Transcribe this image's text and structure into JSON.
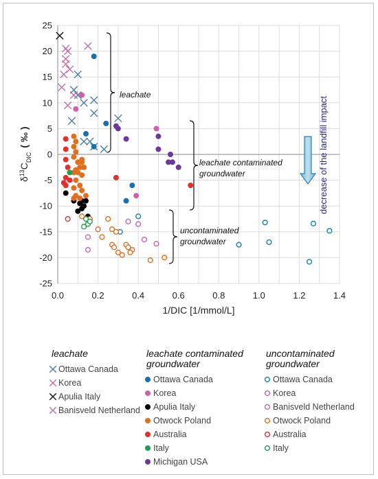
{
  "chart_data": {
    "type": "scatter",
    "xlabel": "1/DIC [1/mmol/L]",
    "ylabel": "δ13CDIC (‰)",
    "ylabel_parts": {
      "delta": "δ",
      "sup": "13",
      "main": "C",
      "sub": "DIC",
      "unit": "( ‰ )"
    },
    "xlim": [
      0,
      1.4
    ],
    "ylim": [
      -25,
      25
    ],
    "xticks": [
      "0.0",
      "0.2",
      "0.4",
      "0.6",
      "0.8",
      "1.0",
      "1.2",
      "1.4"
    ],
    "yticks": [
      "-25",
      "-20",
      "-15",
      "-10",
      "-5",
      "0",
      "5",
      "10",
      "15",
      "20",
      "25"
    ],
    "grid": true,
    "annotations": {
      "leachate": "leachate",
      "contaminated_1": "leachate contaminated",
      "contaminated_2": "groundwater",
      "uncontaminated_1": "uncontaminated",
      "uncontaminated_2": "groundwater",
      "arrow": "decrease of the landfill impact"
    },
    "groups": [
      {
        "title_lines": [
          "leachate"
        ],
        "series": [
          {
            "name": "Ottawa Canada",
            "marker": "x",
            "color": "#4a7fa8",
            "points": [
              [
                0.1,
                15.5
              ],
              [
                0.08,
                12.5
              ],
              [
                0.1,
                11.5
              ],
              [
                0.18,
                10.5
              ],
              [
                0.13,
                10
              ],
              [
                0.07,
                6.5
              ],
              [
                0.18,
                8
              ],
              [
                0.3,
                7
              ],
              [
                0.13,
                2.5
              ],
              [
                0.16,
                2.5
              ],
              [
                0.18,
                1.5
              ],
              [
                0.23,
                1
              ]
            ]
          },
          {
            "name": "Korea",
            "marker": "x",
            "color": "#c070a8",
            "points": [
              [
                0.04,
                20.5
              ],
              [
                0.05,
                20
              ],
              [
                0.15,
                21
              ],
              [
                0.04,
                18.5
              ],
              [
                0.06,
                16.5
              ],
              [
                0.03,
                15.5
              ],
              [
                0.02,
                13
              ],
              [
                0.08,
                11.5
              ],
              [
                0.05,
                9.5
              ]
            ]
          },
          {
            "name": "Apulia Italy",
            "marker": "x",
            "color": "#111111",
            "points": [
              [
                0.01,
                23
              ]
            ]
          },
          {
            "name": "Banisveld Netherland",
            "marker": "x",
            "color": "#c070a8",
            "points": [
              [
                0.04,
                17.5
              ]
            ]
          }
        ]
      },
      {
        "title_lines": [
          "leachate contaminated",
          "groundwater"
        ],
        "series": [
          {
            "name": "Ottawa Canada",
            "marker": "filled",
            "color": "#1a6fb0",
            "points": [
              [
                0.18,
                19
              ],
              [
                0.14,
                4
              ],
              [
                0.24,
                6
              ],
              [
                0.37,
                -6
              ],
              [
                0.34,
                -9
              ],
              [
                0.18,
                1.5
              ]
            ]
          },
          {
            "name": "Korea",
            "marker": "filled",
            "color": "#d060a8",
            "points": [
              [
                0.12,
                11.5
              ],
              [
                0.09,
                8.8
              ],
              [
                0.49,
                5
              ],
              [
                0.39,
                -8
              ]
            ]
          },
          {
            "name": "Apulia Italy",
            "marker": "filled",
            "color": "#000000",
            "points": [
              [
                0.04,
                -7.5
              ],
              [
                0.08,
                -9
              ],
              [
                0.11,
                -9.5
              ],
              [
                0.12,
                -10.5
              ],
              [
                0.13,
                -10
              ],
              [
                0.14,
                -9
              ],
              [
                0.1,
                -11
              ],
              [
                0.15,
                -12
              ],
              [
                0.12,
                -9
              ]
            ]
          },
          {
            "name": "Otwock Poland",
            "marker": "filled",
            "color": "#e07020",
            "points": [
              [
                0.08,
                3.5
              ],
              [
                0.09,
                2.5
              ],
              [
                0.08,
                1.5
              ],
              [
                0.09,
                0.5
              ],
              [
                0.08,
                -0.5
              ],
              [
                0.1,
                -1.5
              ],
              [
                0.12,
                -1.5
              ],
              [
                0.11,
                -2.5
              ],
              [
                0.09,
                -3
              ],
              [
                0.08,
                -3.5
              ],
              [
                0.12,
                -4
              ],
              [
                0.09,
                -5
              ],
              [
                0.11,
                -6
              ],
              [
                0.08,
                -6.5
              ],
              [
                0.12,
                -7
              ],
              [
                0.09,
                -8
              ],
              [
                0.11,
                -8.5
              ],
              [
                0.14,
                -8
              ],
              [
                0.1,
                -3.5
              ],
              [
                0.12,
                -1
              ],
              [
                0.13,
                -2.5
              ],
              [
                0.08,
                -8.5
              ]
            ]
          },
          {
            "name": "Australia",
            "marker": "filled",
            "color": "#e03030",
            "points": [
              [
                0.04,
                3
              ],
              [
                0.04,
                1
              ],
              [
                0.04,
                -1
              ],
              [
                0.05,
                -2.5
              ],
              [
                0.06,
                -3.5
              ],
              [
                0.04,
                -4.5
              ],
              [
                0.03,
                -5.5
              ],
              [
                0.04,
                -6
              ],
              [
                0.06,
                -5
              ],
              [
                0.29,
                -4.5
              ],
              [
                0.66,
                -6
              ]
            ]
          },
          {
            "name": "Italy",
            "marker": "filled",
            "color": "#20a050",
            "points": [
              [
                0.06,
                -3.5
              ]
            ]
          },
          {
            "name": "Michigan USA",
            "marker": "filled",
            "color": "#6a3a9a",
            "points": [
              [
                0.29,
                5.5
              ],
              [
                0.3,
                5
              ],
              [
                0.34,
                3
              ],
              [
                0.5,
                1
              ],
              [
                0.55,
                -1.5
              ],
              [
                0.56,
                0
              ],
              [
                0.57,
                -1.5
              ],
              [
                0.6,
                -2.5
              ],
              [
                0.5,
                3.5
              ]
            ]
          }
        ]
      },
      {
        "title_lines": [
          "uncontaminated",
          "groundwater"
        ],
        "series": [
          {
            "name": "Ottawa Canada",
            "marker": "open",
            "color": "#1a7fb0",
            "points": [
              [
                0.4,
                -12
              ],
              [
                0.31,
                -15
              ],
              [
                0.9,
                -17.5
              ],
              [
                1.03,
                -13.2
              ],
              [
                1.05,
                -17
              ],
              [
                1.27,
                -13.4
              ],
              [
                1.35,
                -14.8
              ],
              [
                1.25,
                -20.8
              ]
            ]
          },
          {
            "name": "Korea",
            "marker": "open",
            "color": "#d060a8",
            "points": [
              [
                0.15,
                -18.5
              ],
              [
                0.35,
                -13
              ],
              [
                0.4,
                -13.5
              ],
              [
                0.49,
                -17.3
              ],
              [
                0.43,
                -16.5
              ]
            ]
          },
          {
            "name": "Banisveld Netherland",
            "marker": "open",
            "color": "#c070a8",
            "points": [
              [
                0.15,
                -16
              ]
            ]
          },
          {
            "name": "Otwock Poland",
            "marker": "open",
            "color": "#e07020",
            "points": [
              [
                0.16,
                -12.5
              ],
              [
                0.2,
                -14.5
              ],
              [
                0.22,
                -16
              ],
              [
                0.25,
                -12.5
              ],
              [
                0.27,
                -14.5
              ],
              [
                0.29,
                -15
              ],
              [
                0.3,
                -19
              ],
              [
                0.27,
                -17.5
              ],
              [
                0.28,
                -18
              ],
              [
                0.32,
                -19.5
              ],
              [
                0.34,
                -17.5
              ],
              [
                0.35,
                -18
              ],
              [
                0.37,
                -18.5
              ],
              [
                0.36,
                -19
              ],
              [
                0.46,
                -20.5
              ],
              [
                0.53,
                -20
              ],
              [
                0.12,
                -12
              ]
            ]
          },
          {
            "name": "Australia",
            "marker": "open",
            "color": "#e03030",
            "points": [
              [
                0.05,
                -12.5
              ]
            ]
          },
          {
            "name": "Italy",
            "marker": "open",
            "color": "#20a050",
            "points": [
              [
                0.14,
                -12.5
              ],
              [
                0.15,
                -13.5
              ],
              [
                0.13,
                -14
              ],
              [
                0.16,
                -13
              ]
            ]
          }
        ]
      }
    ]
  }
}
